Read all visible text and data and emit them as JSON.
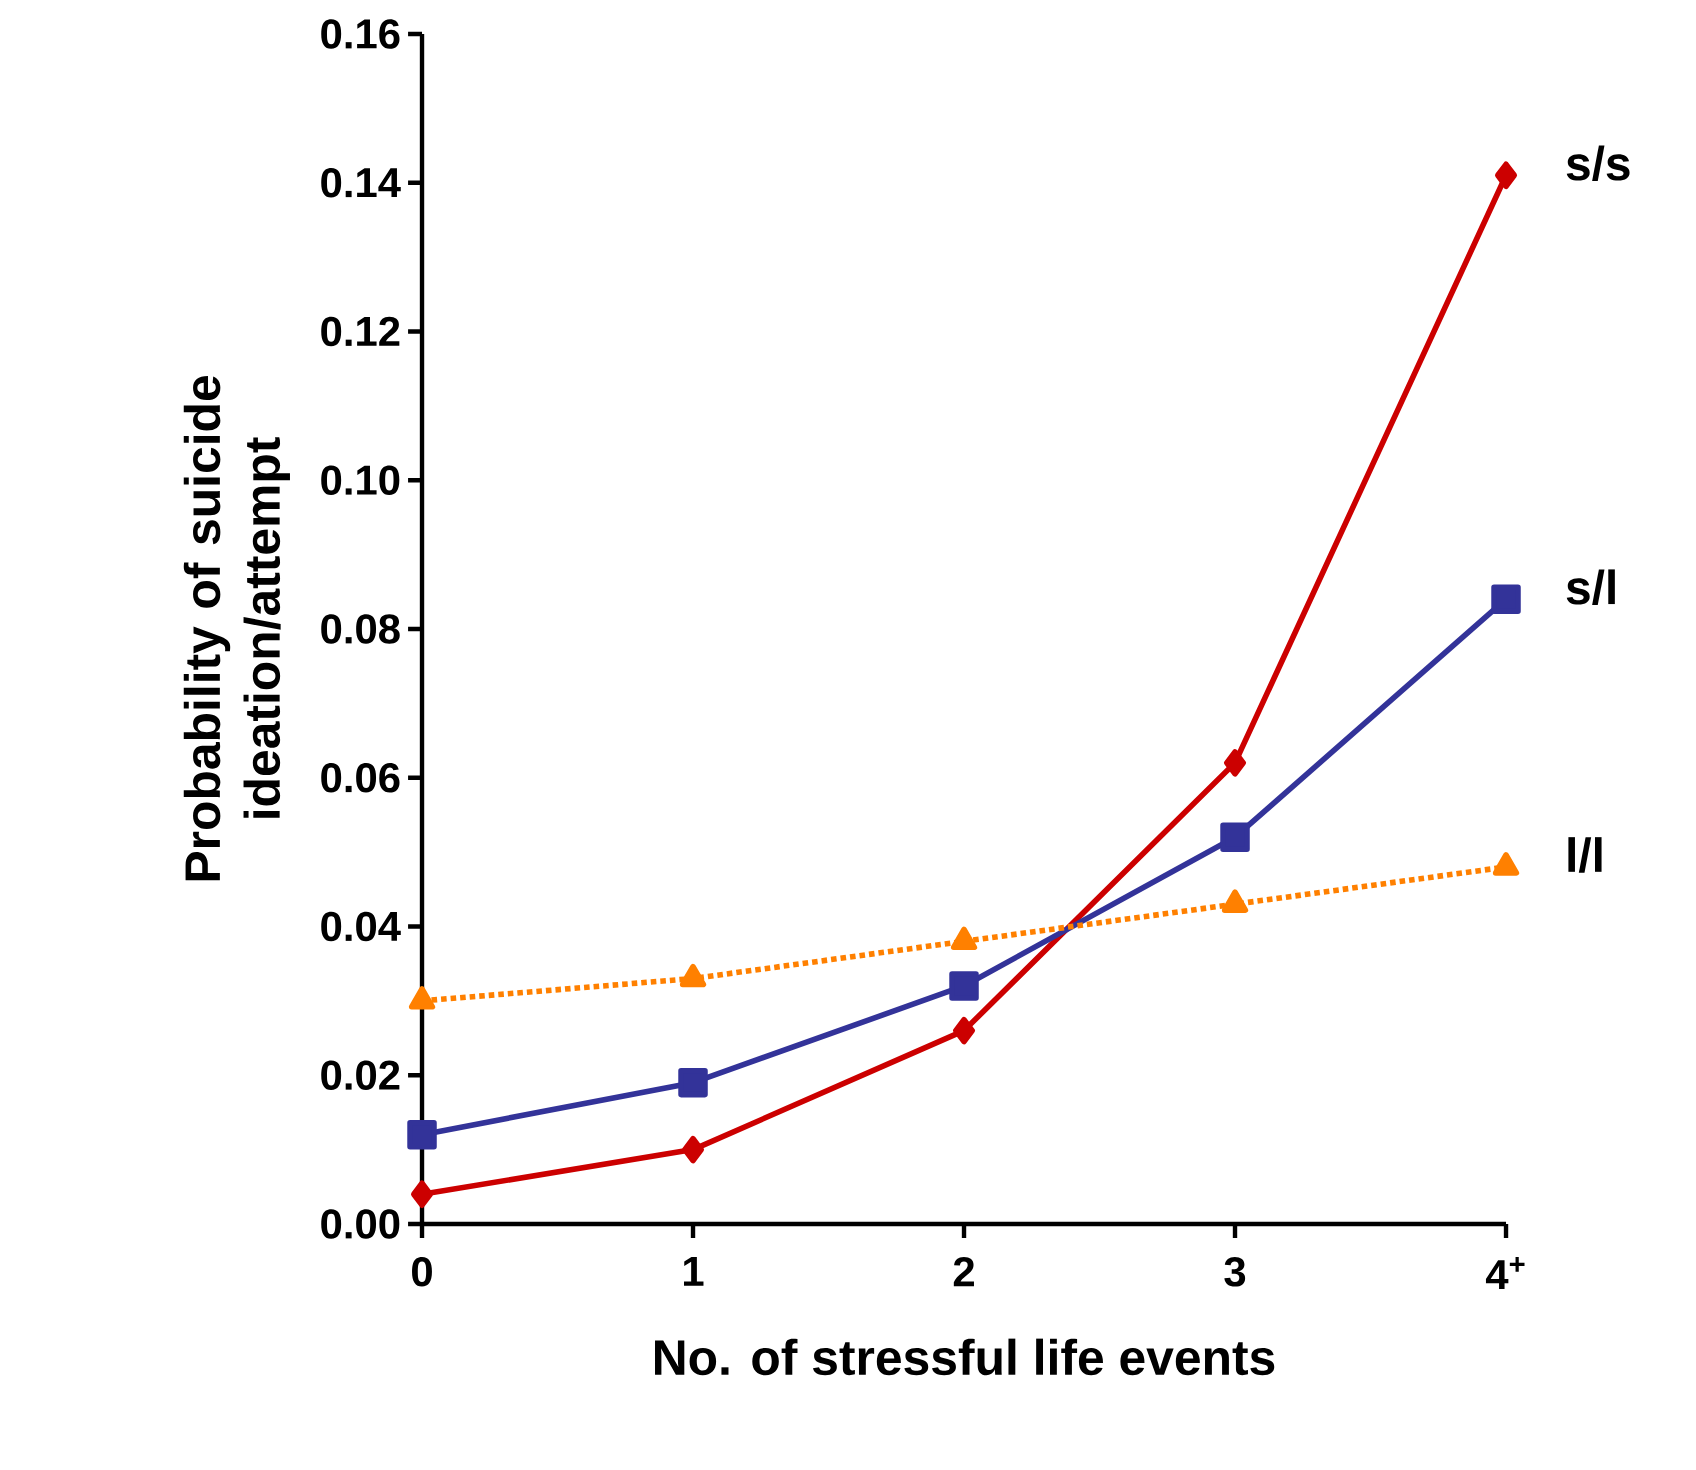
{
  "chart_data": {
    "type": "line",
    "xlabel": "No. of stressful life events",
    "ylabel": "Probability of suicide ideation/attempt",
    "categories": [
      "0",
      "1",
      "2",
      "3",
      "4$^{+}$"
    ],
    "ylim": [
      0,
      0.16
    ],
    "yticks": [
      {
        "value": 0,
        "label": "0.00"
      },
      {
        "value": 0.02,
        "label": "0.02"
      },
      {
        "value": 0.04,
        "label": "0.04"
      },
      {
        "value": 0.06,
        "label": "0.06"
      },
      {
        "value": 0.08,
        "label": "0.08"
      },
      {
        "value": 0.1,
        "label": "0.10"
      },
      {
        "value": 0.12,
        "label": "0.12"
      },
      {
        "value": 0.14,
        "label": "0.14"
      },
      {
        "value": 0.16,
        "label": "0.16"
      }
    ],
    "series": [
      {
        "name": "s/s",
        "color": "#cc0000",
        "marker": "diamond",
        "line_style": "solid",
        "values": [
          0.004,
          0.01,
          0.026,
          0.062,
          0.141
        ]
      },
      {
        "name": "s/l",
        "color": "#333399",
        "marker": "square",
        "line_style": "solid",
        "values": [
          0.012,
          0.019,
          0.032,
          0.052,
          0.084
        ]
      },
      {
        "name": "l/l",
        "color": "#ff8000",
        "marker": "triangle",
        "line_style": "dotted",
        "values": [
          0.03,
          0.033,
          0.038,
          0.043,
          0.048
        ]
      }
    ]
  }
}
